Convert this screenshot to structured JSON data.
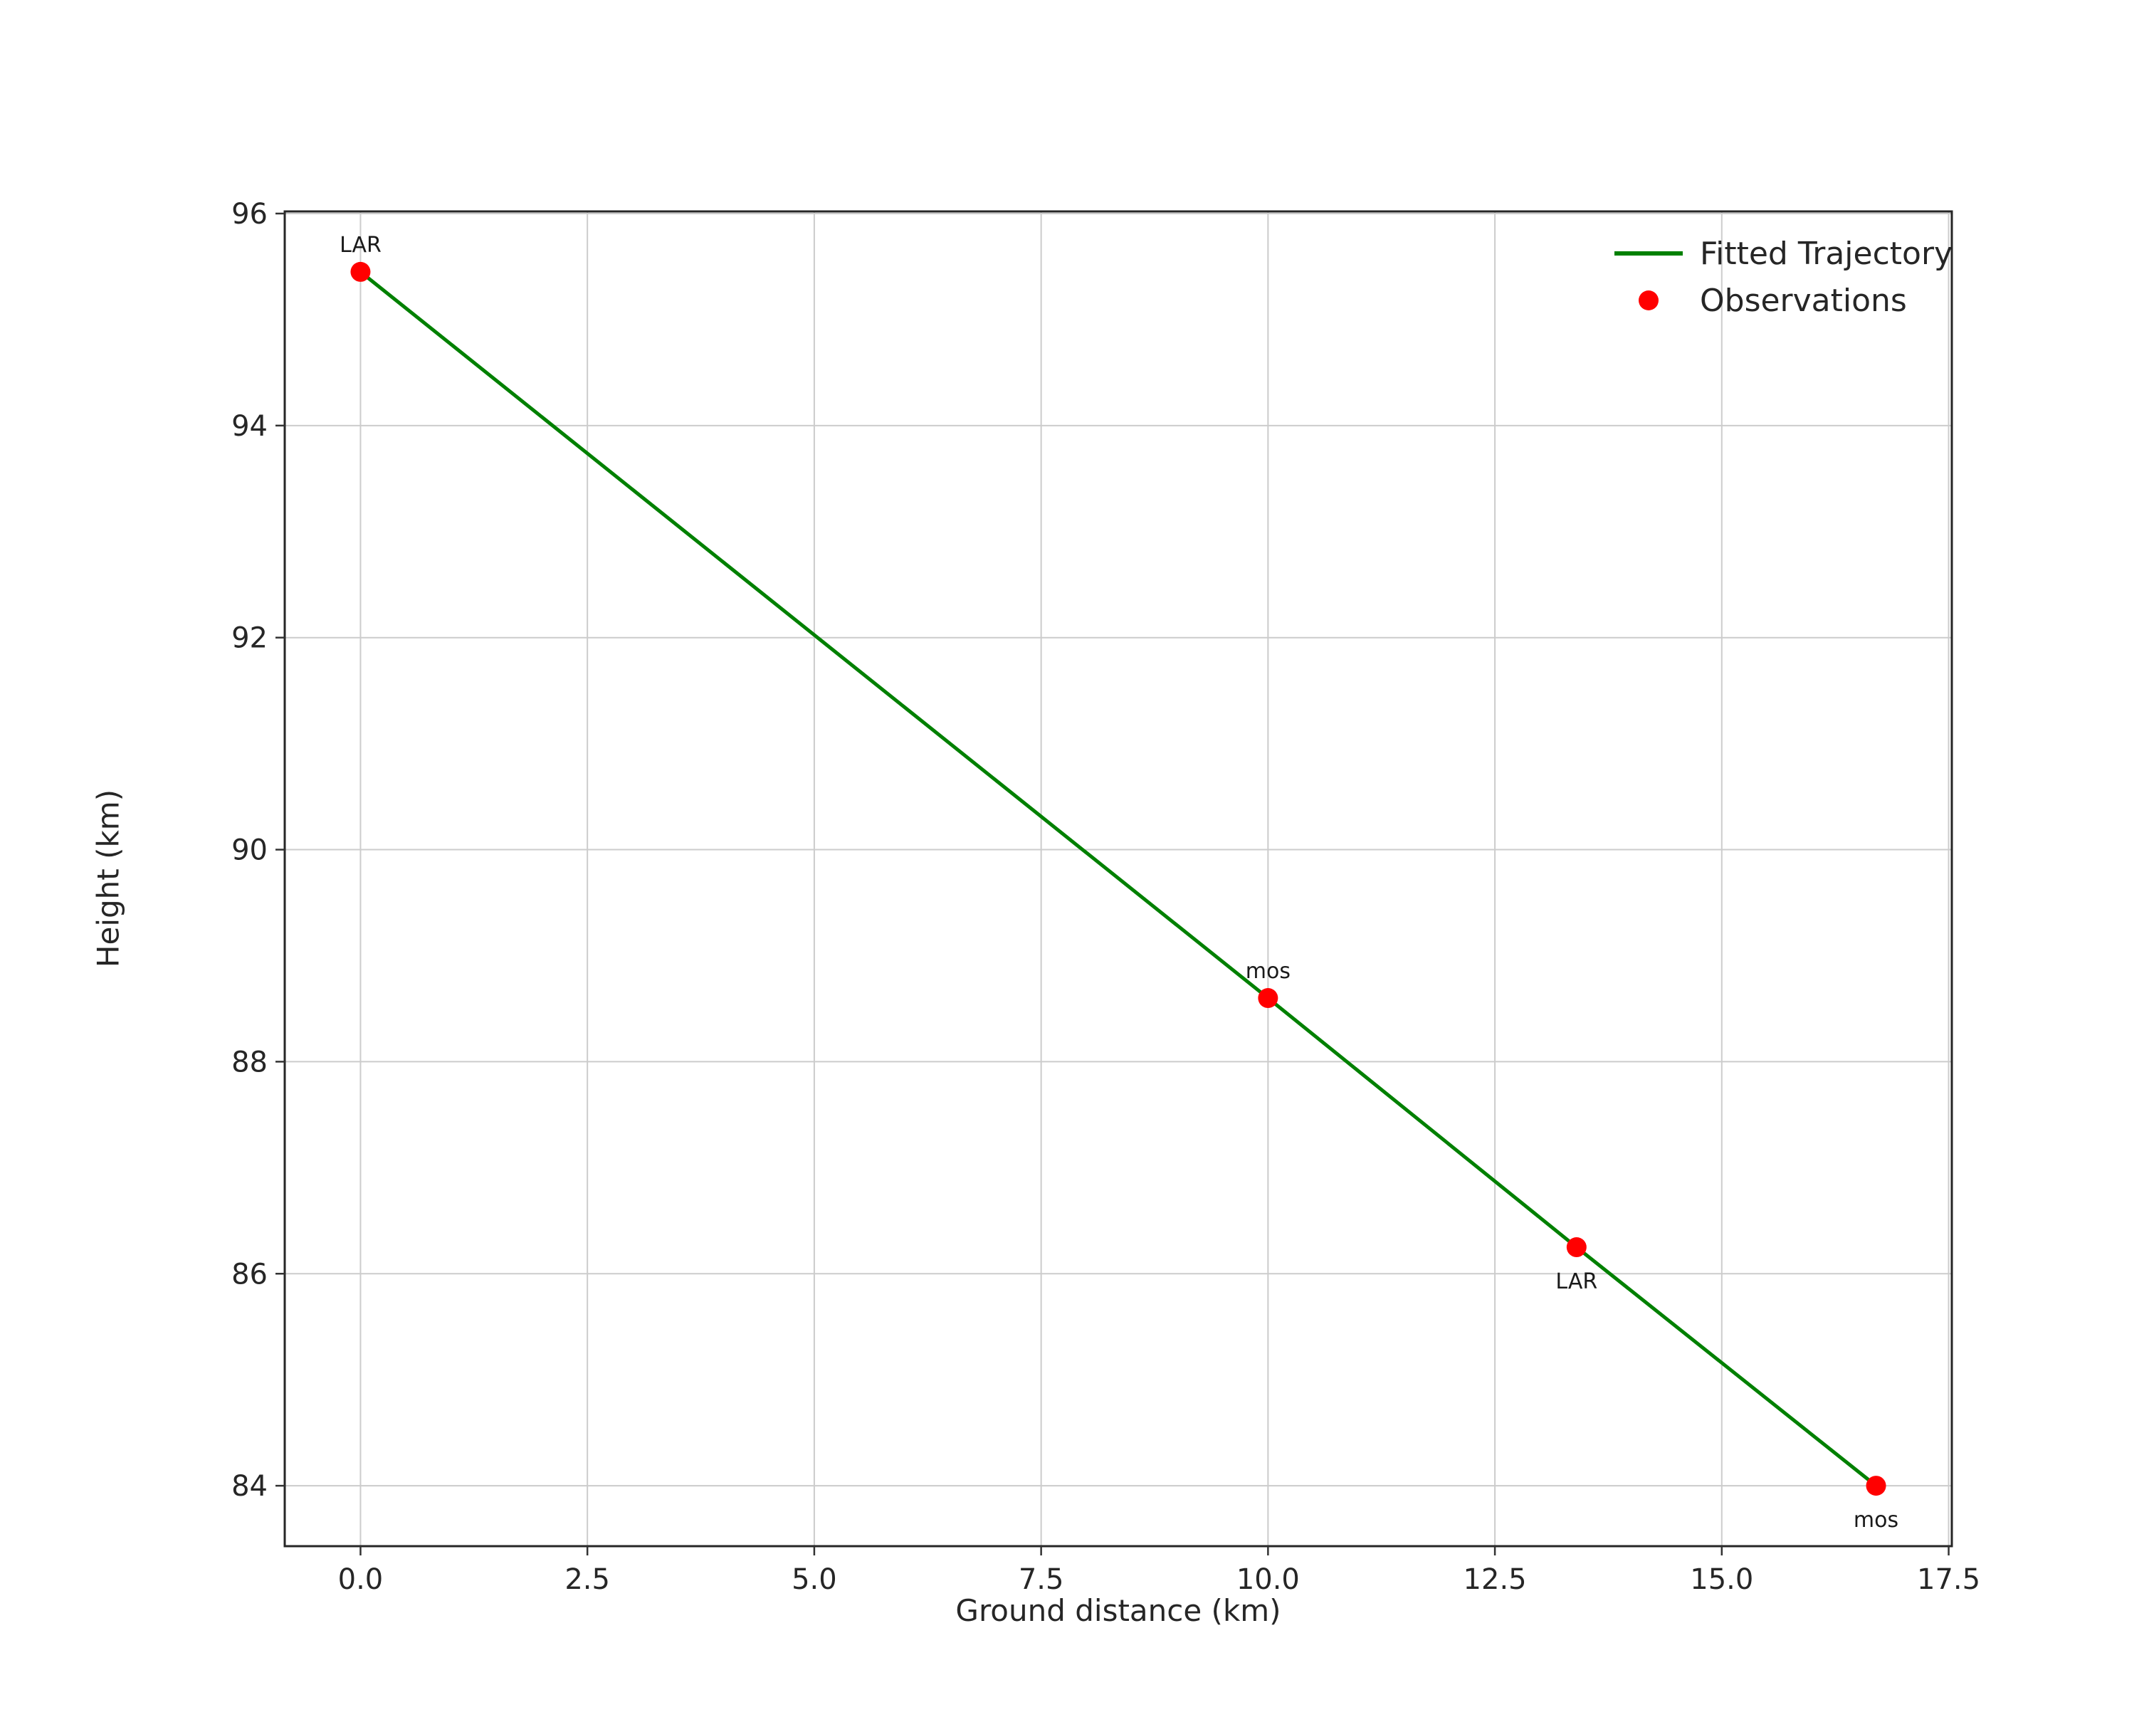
{
  "figure": {
    "background": "#ffffff"
  },
  "colors": {
    "grid": "#cccccc",
    "frame": "#262626",
    "tick": "#333333",
    "text": "#262626",
    "annotation": "#1a1a1a"
  },
  "chart_data": {
    "type": "line",
    "title": "",
    "xlabel": "Ground distance (km)",
    "ylabel": "Height (km)",
    "xlim": [
      -0.835,
      17.535
    ],
    "ylim": [
      83.43,
      96.02
    ],
    "grid": true,
    "legend_position": "upper right",
    "x_tick_values": [
      0.0,
      2.5,
      5.0,
      7.5,
      10.0,
      12.5,
      15.0,
      17.5
    ],
    "x_tick_labels": [
      "0.0",
      "2.5",
      "5.0",
      "7.5",
      "10.0",
      "12.5",
      "15.0",
      "17.5"
    ],
    "y_tick_values": [
      84,
      86,
      88,
      90,
      92,
      94,
      96
    ],
    "y_tick_labels": [
      "84",
      "86",
      "88",
      "90",
      "92",
      "94",
      "96"
    ],
    "series": [
      {
        "name": "Fitted Trajectory",
        "type": "line",
        "color": "#008000",
        "x": [
          0.0,
          10.0,
          13.4,
          16.7
        ],
        "y": [
          95.45,
          88.6,
          86.25,
          84.0
        ]
      },
      {
        "name": "Observations",
        "type": "scatter",
        "color": "#ff0000",
        "points": [
          {
            "x": 0.0,
            "y": 95.45,
            "label": "LAR",
            "label_pos": "above"
          },
          {
            "x": 10.0,
            "y": 88.6,
            "label": "mos",
            "label_pos": "above"
          },
          {
            "x": 13.4,
            "y": 86.25,
            "label": "LAR",
            "label_pos": "below"
          },
          {
            "x": 16.7,
            "y": 84.0,
            "label": "mos",
            "label_pos": "below"
          }
        ]
      }
    ],
    "legend": [
      {
        "label": "Fitted Trajectory",
        "marker": "line",
        "color": "#008000"
      },
      {
        "label": "Observations",
        "marker": "dot",
        "color": "#ff0000"
      }
    ]
  }
}
